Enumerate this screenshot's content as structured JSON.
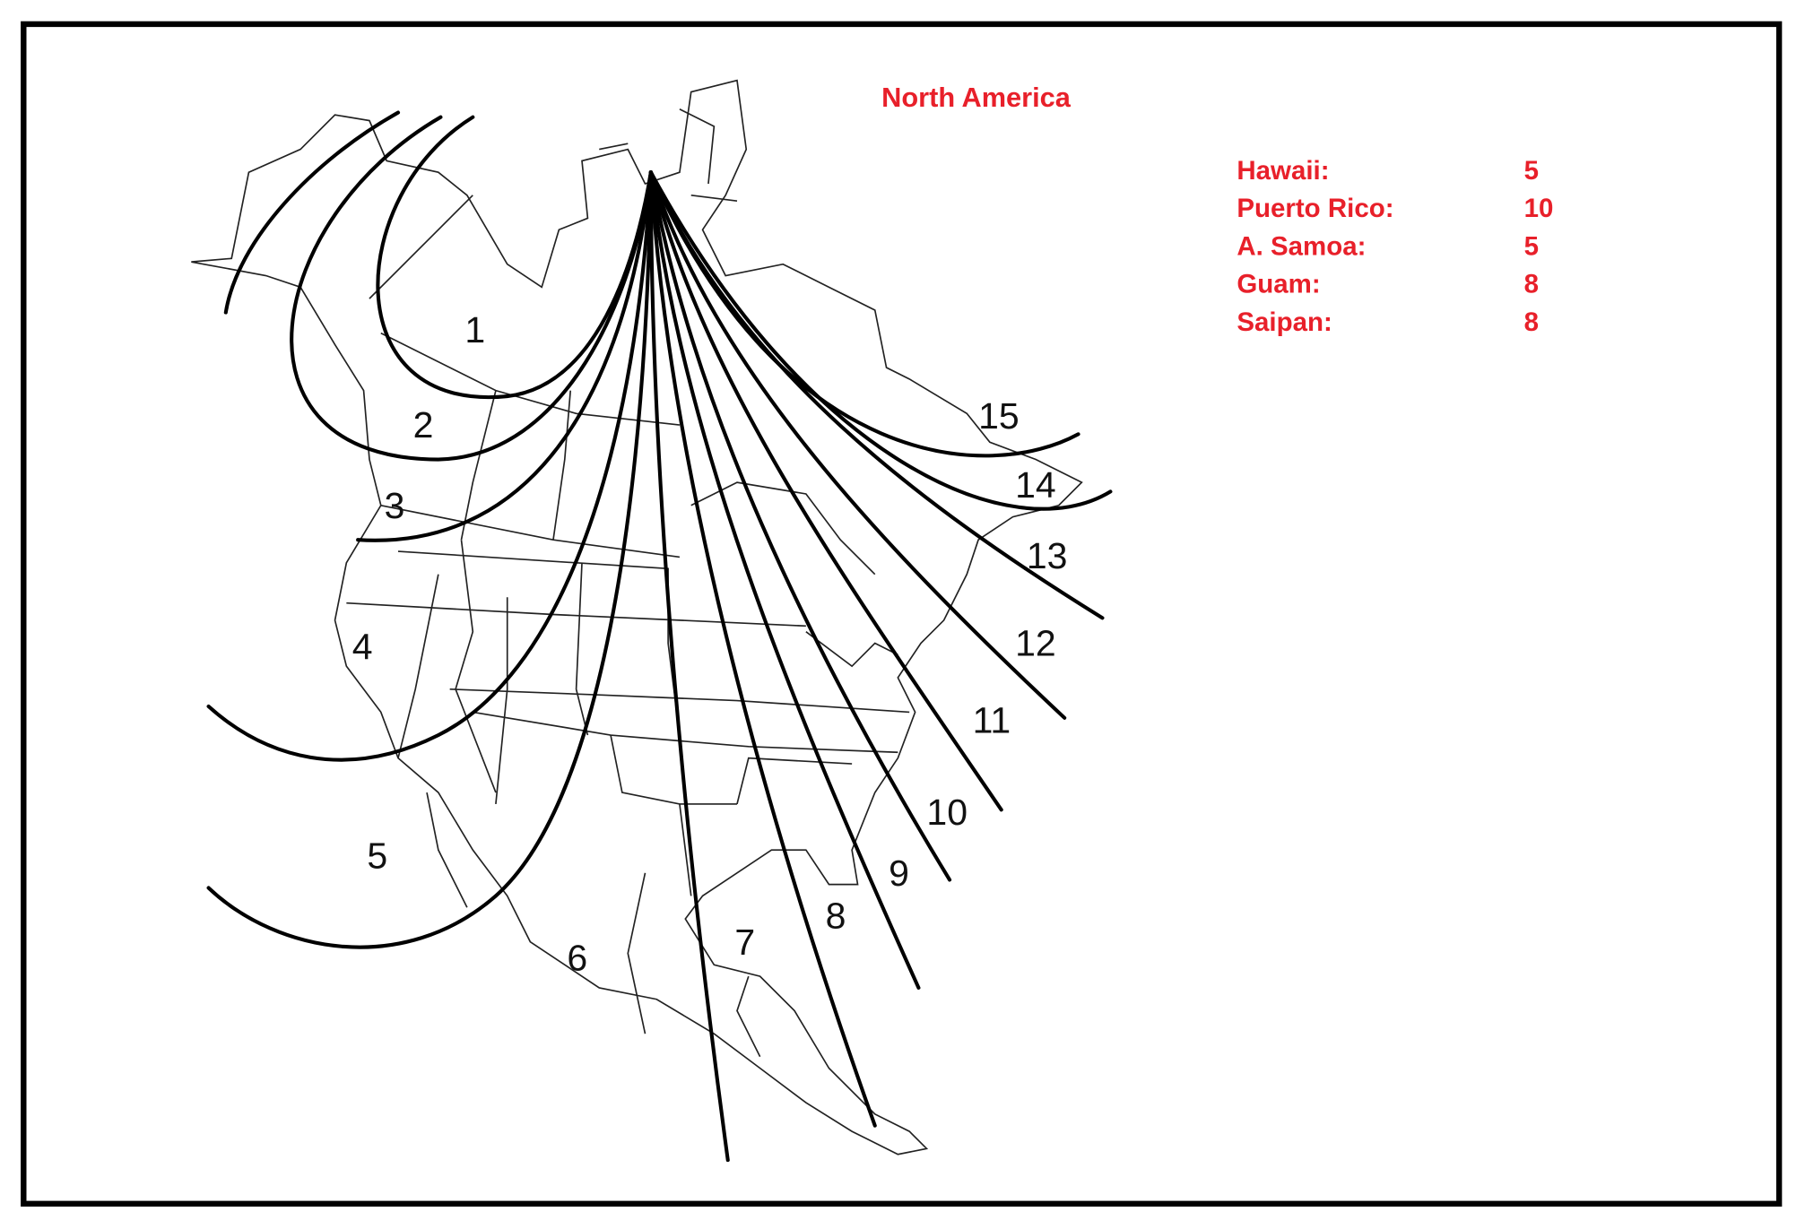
{
  "map": {
    "title": "North America",
    "zone_labels": [
      "1",
      "2",
      "3",
      "4",
      "5",
      "6",
      "7",
      "8",
      "9",
      "10",
      "11",
      "12",
      "13",
      "14",
      "15"
    ],
    "accent_color": "#e8202a"
  },
  "legend": {
    "rows": [
      {
        "name": "Hawaii:",
        "value": "5"
      },
      {
        "name": "Puerto Rico:",
        "value": "10"
      },
      {
        "name": "A. Samoa:",
        "value": "5"
      },
      {
        "name": "Guam:",
        "value": "8"
      },
      {
        "name": "Saipan:",
        "value": "8"
      }
    ]
  }
}
